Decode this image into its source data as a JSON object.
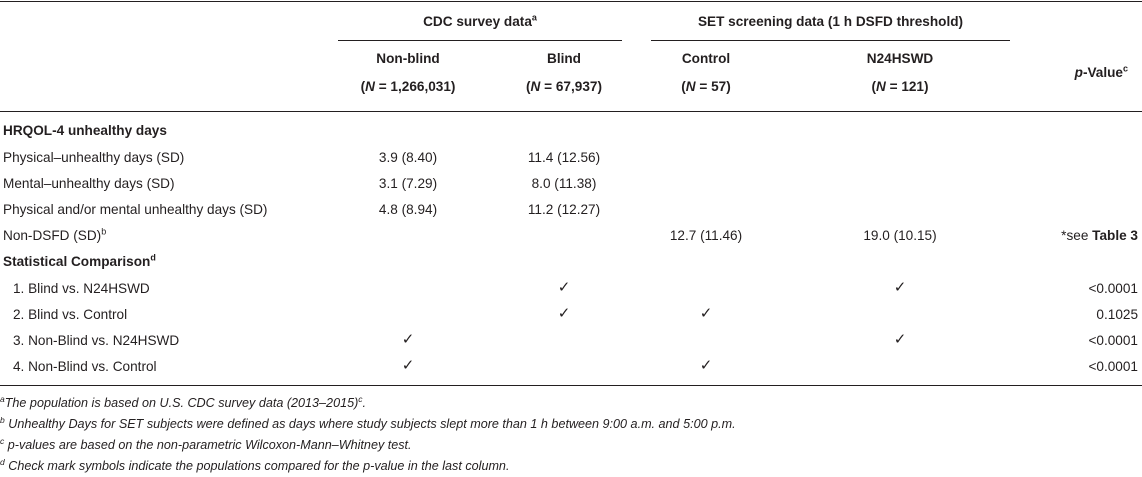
{
  "table": {
    "header": {
      "group_cdc": "CDC survey data",
      "group_cdc_sup": "a",
      "group_set": "SET screening data (1 h DSFD threshold)",
      "pvalue_p": "p",
      "pvalue_rest": "-Value",
      "pvalue_sup": "c",
      "columns": [
        {
          "label": "Non-blind",
          "n_value": "1,266,031"
        },
        {
          "label": "Blind",
          "n_value": "67,937"
        },
        {
          "label": "Control",
          "n_value": "57"
        },
        {
          "label": "N24HSWD",
          "n_value": "121"
        }
      ],
      "n_prefix": "(",
      "n_symbol": "N",
      "n_equals": " = ",
      "n_suffix": ")"
    },
    "section_hrqol": "HRQOL-4 unhealthy days",
    "rows": [
      {
        "label": "Physical–unhealthy days (SD)",
        "nonblind": "3.9 (8.40)",
        "blind": "11.4 (12.56)"
      },
      {
        "label": "Mental–unhealthy days (SD)",
        "nonblind": "3.1 (7.29)",
        "blind": "8.0 (11.38)"
      },
      {
        "label": "Physical and/or mental unhealthy days (SD)",
        "nonblind": "4.8 (8.94)",
        "blind": "11.2 (12.27)"
      }
    ],
    "non_dsfd": {
      "label": "Non-DSFD (SD)",
      "label_sup": "b",
      "control": "12.7 (11.46)",
      "n24": "19.0 (10.15)",
      "pvalue_prefix": "*see ",
      "pvalue_ref": "Table 3"
    },
    "section_stat": "Statistical Comparison",
    "section_stat_sup": "d",
    "check_symbol": "✓",
    "comparisons": [
      {
        "label": "1. Blind vs. N24HSWD",
        "pvalue": "<0.0001"
      },
      {
        "label": "2. Blind vs. Control",
        "pvalue": "0.1025"
      },
      {
        "label": "3. Non-Blind vs. N24HSWD",
        "pvalue": "<0.0001"
      },
      {
        "label": "4. Non-Blind vs. Control",
        "pvalue": "<0.0001"
      }
    ]
  },
  "footnotes": {
    "a_mark": "a",
    "a_text": "The population is based on U.S. CDC survey data (2013–2015)",
    "a_sup": "c",
    "a_end": ".",
    "b_mark": "b",
    "b_text": " Unhealthy Days for SET subjects were defined as days where study subjects slept more than 1 h between 9:00 a.m. and 5:00 p.m.",
    "c_mark": "c",
    "c_text": " p-values are based on the non-parametric Wilcoxon-Mann–Whitney test.",
    "d_mark": "d",
    "d_text": " Check mark symbols indicate the populations compared for the p-value in the last column."
  }
}
